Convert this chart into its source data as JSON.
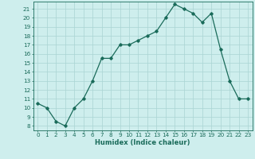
{
  "x": [
    0,
    1,
    2,
    3,
    4,
    5,
    6,
    7,
    8,
    9,
    10,
    11,
    12,
    13,
    14,
    15,
    16,
    17,
    18,
    19,
    20,
    21,
    22,
    23
  ],
  "y": [
    10.5,
    10.0,
    8.5,
    8.0,
    10.0,
    11.0,
    13.0,
    15.5,
    15.5,
    17.0,
    17.0,
    17.5,
    18.0,
    18.5,
    20.0,
    21.5,
    21.0,
    20.5,
    19.5,
    20.5,
    16.5,
    13.0,
    11.0,
    11.0
  ],
  "line_color": "#1a6b5a",
  "marker": "D",
  "marker_size": 1.8,
  "xlabel": "Humidex (Indice chaleur)",
  "xlim": [
    -0.5,
    23.5
  ],
  "ylim": [
    7.5,
    21.8
  ],
  "yticks": [
    8,
    9,
    10,
    11,
    12,
    13,
    14,
    15,
    16,
    17,
    18,
    19,
    20,
    21
  ],
  "xticks": [
    0,
    1,
    2,
    3,
    4,
    5,
    6,
    7,
    8,
    9,
    10,
    11,
    12,
    13,
    14,
    15,
    16,
    17,
    18,
    19,
    20,
    21,
    22,
    23
  ],
  "bg_color": "#ceeeed",
  "grid_color": "#aad4d3",
  "font_color": "#1a6b5a",
  "label_fontsize": 6.0,
  "tick_fontsize": 5.2
}
